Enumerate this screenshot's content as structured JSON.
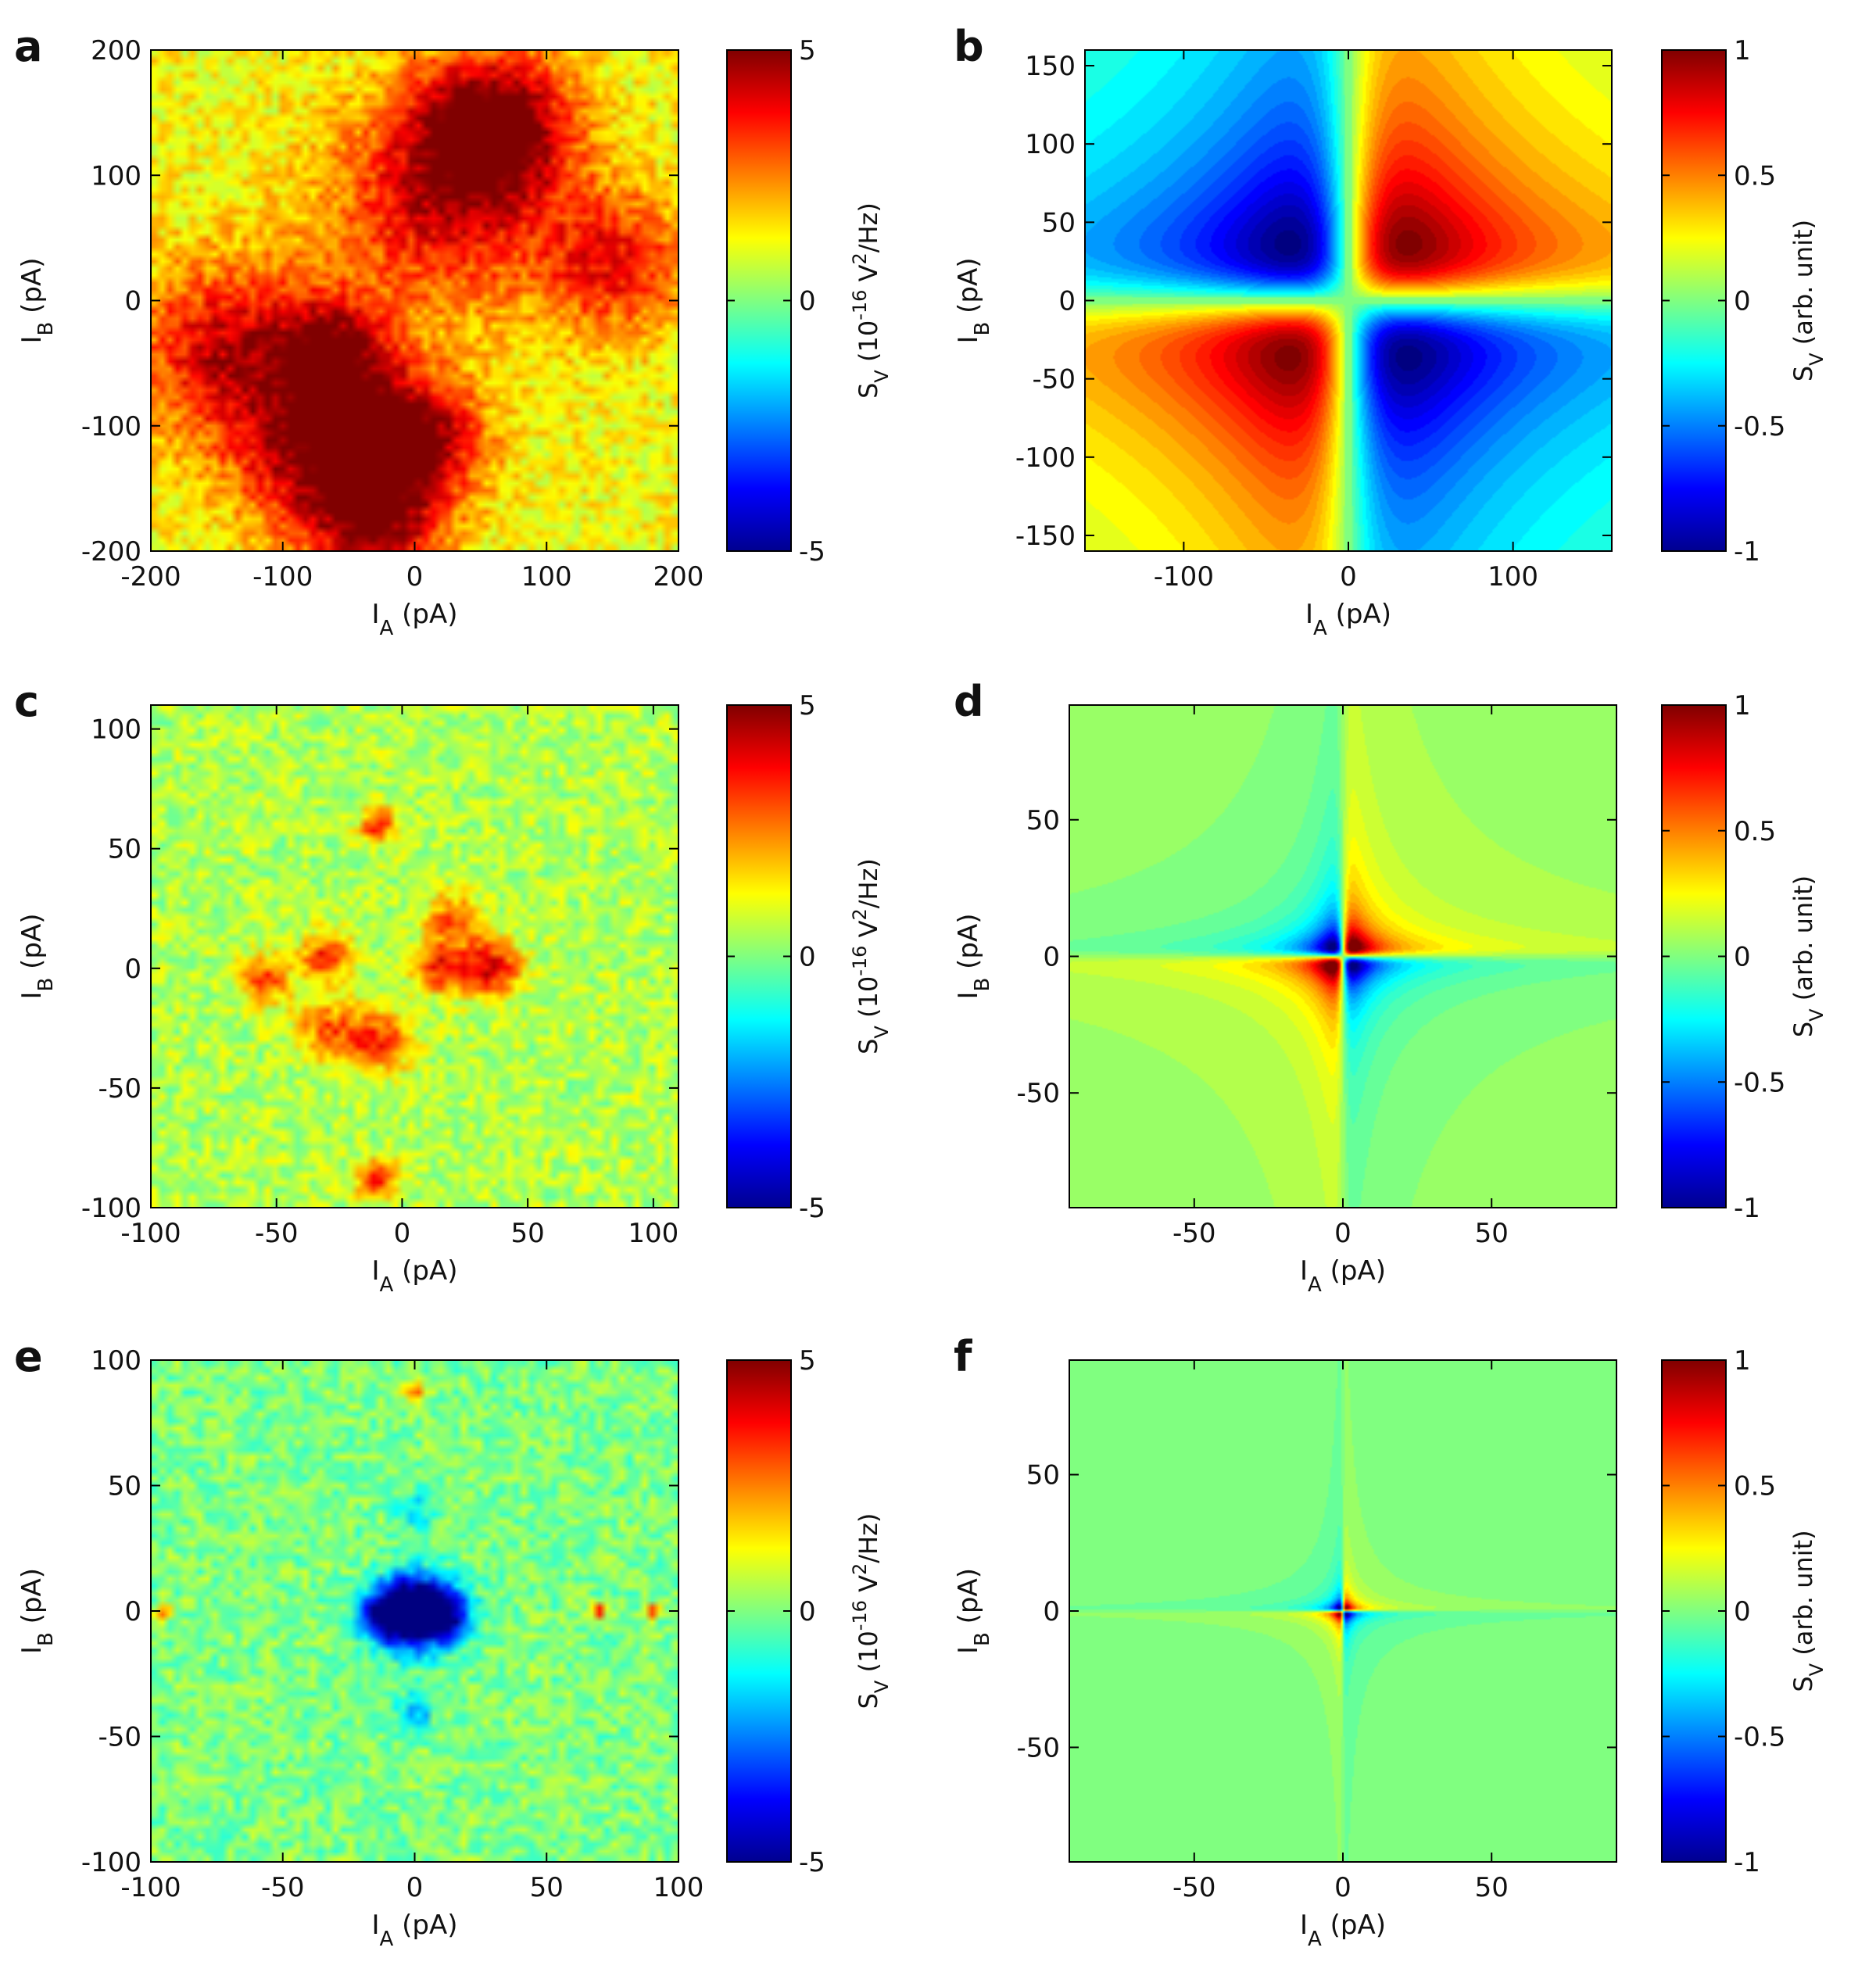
{
  "figure": {
    "colormap": "jet"
  },
  "chart_data": [
    {
      "panel": "a",
      "type": "heatmap",
      "kind": "measured",
      "xlabel": "I",
      "xsub": "A",
      "xunit": " (pA)",
      "ylabel": "I",
      "ysub": "B",
      "yunit": " (pA)",
      "xlim": [
        -200,
        200
      ],
      "ylim": [
        -200,
        200
      ],
      "xticks": [
        -200,
        -100,
        0,
        100,
        200
      ],
      "yticks": [
        -200,
        -100,
        0,
        100,
        200
      ],
      "colorbar": {
        "label": "S_V (10^-16 V^2/Hz)",
        "range": [
          -5,
          5
        ],
        "ticks": [
          -5,
          0,
          5
        ]
      },
      "features": [
        {
          "x": 60,
          "y": 140,
          "value": 4.2,
          "sigma": 40
        },
        {
          "x": 20,
          "y": 80,
          "value": 2.8,
          "sigma": 60
        },
        {
          "x": 150,
          "y": 30,
          "value": 2.5,
          "sigma": 40
        },
        {
          "x": -140,
          "y": -40,
          "value": 3.0,
          "sigma": 50
        },
        {
          "x": -70,
          "y": -120,
          "value": 3.5,
          "sigma": 45
        },
        {
          "x": 0,
          "y": -110,
          "value": 3.8,
          "sigma": 35
        },
        {
          "x": -30,
          "y": -180,
          "value": 3.0,
          "sigma": 35
        },
        {
          "x": -60,
          "y": -40,
          "value": 3.0,
          "sigma": 30
        }
      ],
      "baseline": 1.2
    },
    {
      "panel": "b",
      "type": "heatmap",
      "kind": "model",
      "xlabel": "I",
      "xsub": "A",
      "xunit": " (pA)",
      "ylabel": "I",
      "ysub": "B",
      "yunit": " (pA)",
      "xlim": [
        -160,
        160
      ],
      "ylim": [
        -160,
        160
      ],
      "xticks": [
        -100,
        0,
        100
      ],
      "yticks": [
        -150,
        -100,
        -50,
        0,
        50,
        100,
        150
      ],
      "colorbar": {
        "label": "S_V (arb. unit)",
        "range": [
          -1,
          1
        ],
        "ticks": [
          -1,
          -0.5,
          0,
          0.5,
          1
        ]
      },
      "model": {
        "scale": 36,
        "offset": 0,
        "peak": 1.0
      }
    },
    {
      "panel": "c",
      "type": "heatmap",
      "kind": "measured",
      "xlabel": "I",
      "xsub": "A",
      "xunit": " (pA)",
      "ylabel": "I",
      "ysub": "B",
      "yunit": " (pA)",
      "xlim": [
        -100,
        110
      ],
      "ylim": [
        -100,
        110
      ],
      "xticks": [
        -100,
        -50,
        0,
        50,
        100
      ],
      "yticks": [
        -100,
        -50,
        0,
        50,
        100
      ],
      "colorbar": {
        "label": "S_V (10^-16 V^2/Hz)",
        "range": [
          -5,
          5
        ],
        "ticks": [
          -5,
          0,
          5
        ]
      },
      "features": [
        {
          "x": 35,
          "y": 0,
          "value": 3.8,
          "sigma": 8
        },
        {
          "x": 15,
          "y": 0,
          "value": 3.0,
          "sigma": 7
        },
        {
          "x": 20,
          "y": 20,
          "value": 2.4,
          "sigma": 8
        },
        {
          "x": -30,
          "y": 5,
          "value": 3.0,
          "sigma": 7
        },
        {
          "x": -55,
          "y": -5,
          "value": 2.6,
          "sigma": 7
        },
        {
          "x": -10,
          "y": -30,
          "value": 2.8,
          "sigma": 9
        },
        {
          "x": -30,
          "y": -25,
          "value": 2.2,
          "sigma": 9
        },
        {
          "x": -10,
          "y": 60,
          "value": 3.0,
          "sigma": 5
        },
        {
          "x": -10,
          "y": -88,
          "value": 2.8,
          "sigma": 6
        }
      ],
      "baseline": 0.5
    },
    {
      "panel": "d",
      "type": "heatmap",
      "kind": "model",
      "xlabel": "I",
      "xsub": "A",
      "xunit": " (pA)",
      "ylabel": "I",
      "ysub": "B",
      "yunit": " (pA)",
      "xlim": [
        -92,
        92
      ],
      "ylim": [
        -92,
        92
      ],
      "xticks": [
        -50,
        0,
        50
      ],
      "yticks": [
        -50,
        0,
        50
      ],
      "colorbar": {
        "label": "S_V (arb. unit)",
        "range": [
          -1,
          1
        ],
        "ticks": [
          -1,
          -0.5,
          0,
          0.5,
          1
        ]
      },
      "model": {
        "scale": 3.5,
        "offset": 0.05,
        "peak": 1.1
      }
    },
    {
      "panel": "e",
      "type": "heatmap",
      "kind": "measured",
      "xlabel": "I",
      "xsub": "A",
      "xunit": " (pA)",
      "ylabel": "I",
      "ysub": "B",
      "yunit": " (pA)",
      "xlim": [
        -100,
        100
      ],
      "ylim": [
        -100,
        100
      ],
      "xticks": [
        -100,
        -50,
        0,
        50,
        100
      ],
      "yticks": [
        -100,
        -50,
        0,
        50,
        100
      ],
      "colorbar": {
        "label": "S_V (10^-16 V^2/Hz)",
        "range": [
          -5,
          5
        ],
        "ticks": [
          -5,
          0,
          5
        ]
      },
      "features": [
        {
          "x": 0,
          "y": 0,
          "value": -7.0,
          "sigma": 10
        },
        {
          "x": -12,
          "y": -2,
          "value": -3.0,
          "sigma": 7
        },
        {
          "x": 12,
          "y": -2,
          "value": -3.0,
          "sigma": 7
        },
        {
          "x": 0,
          "y": 88,
          "value": 3.0,
          "sigma": 3
        },
        {
          "x": -95,
          "y": 0,
          "value": 3.5,
          "sigma": 2
        },
        {
          "x": 70,
          "y": 0,
          "value": 3.5,
          "sigma": 2
        },
        {
          "x": 90,
          "y": 0,
          "value": 3.2,
          "sigma": 2
        },
        {
          "x": 0,
          "y": -40,
          "value": -2.0,
          "sigma": 5
        },
        {
          "x": 0,
          "y": 40,
          "value": -1.5,
          "sigma": 5
        }
      ],
      "baseline": 0.0
    },
    {
      "panel": "f",
      "type": "heatmap",
      "kind": "model",
      "xlabel": "I",
      "xsub": "A",
      "xunit": " (pA)",
      "ylabel": "I",
      "ysub": "B",
      "yunit": " (pA)",
      "xlim": [
        -92,
        92
      ],
      "ylim": [
        -92,
        92
      ],
      "xticks": [
        -50,
        0,
        50
      ],
      "yticks": [
        -50,
        0,
        50
      ],
      "colorbar": {
        "label": "S_V (arb. unit)",
        "range": [
          -1,
          1
        ],
        "ticks": [
          -1,
          -0.5,
          0,
          0.5,
          1
        ]
      },
      "model": {
        "scale": 1.2,
        "offset": 0.0,
        "peak": 1.0
      }
    }
  ]
}
